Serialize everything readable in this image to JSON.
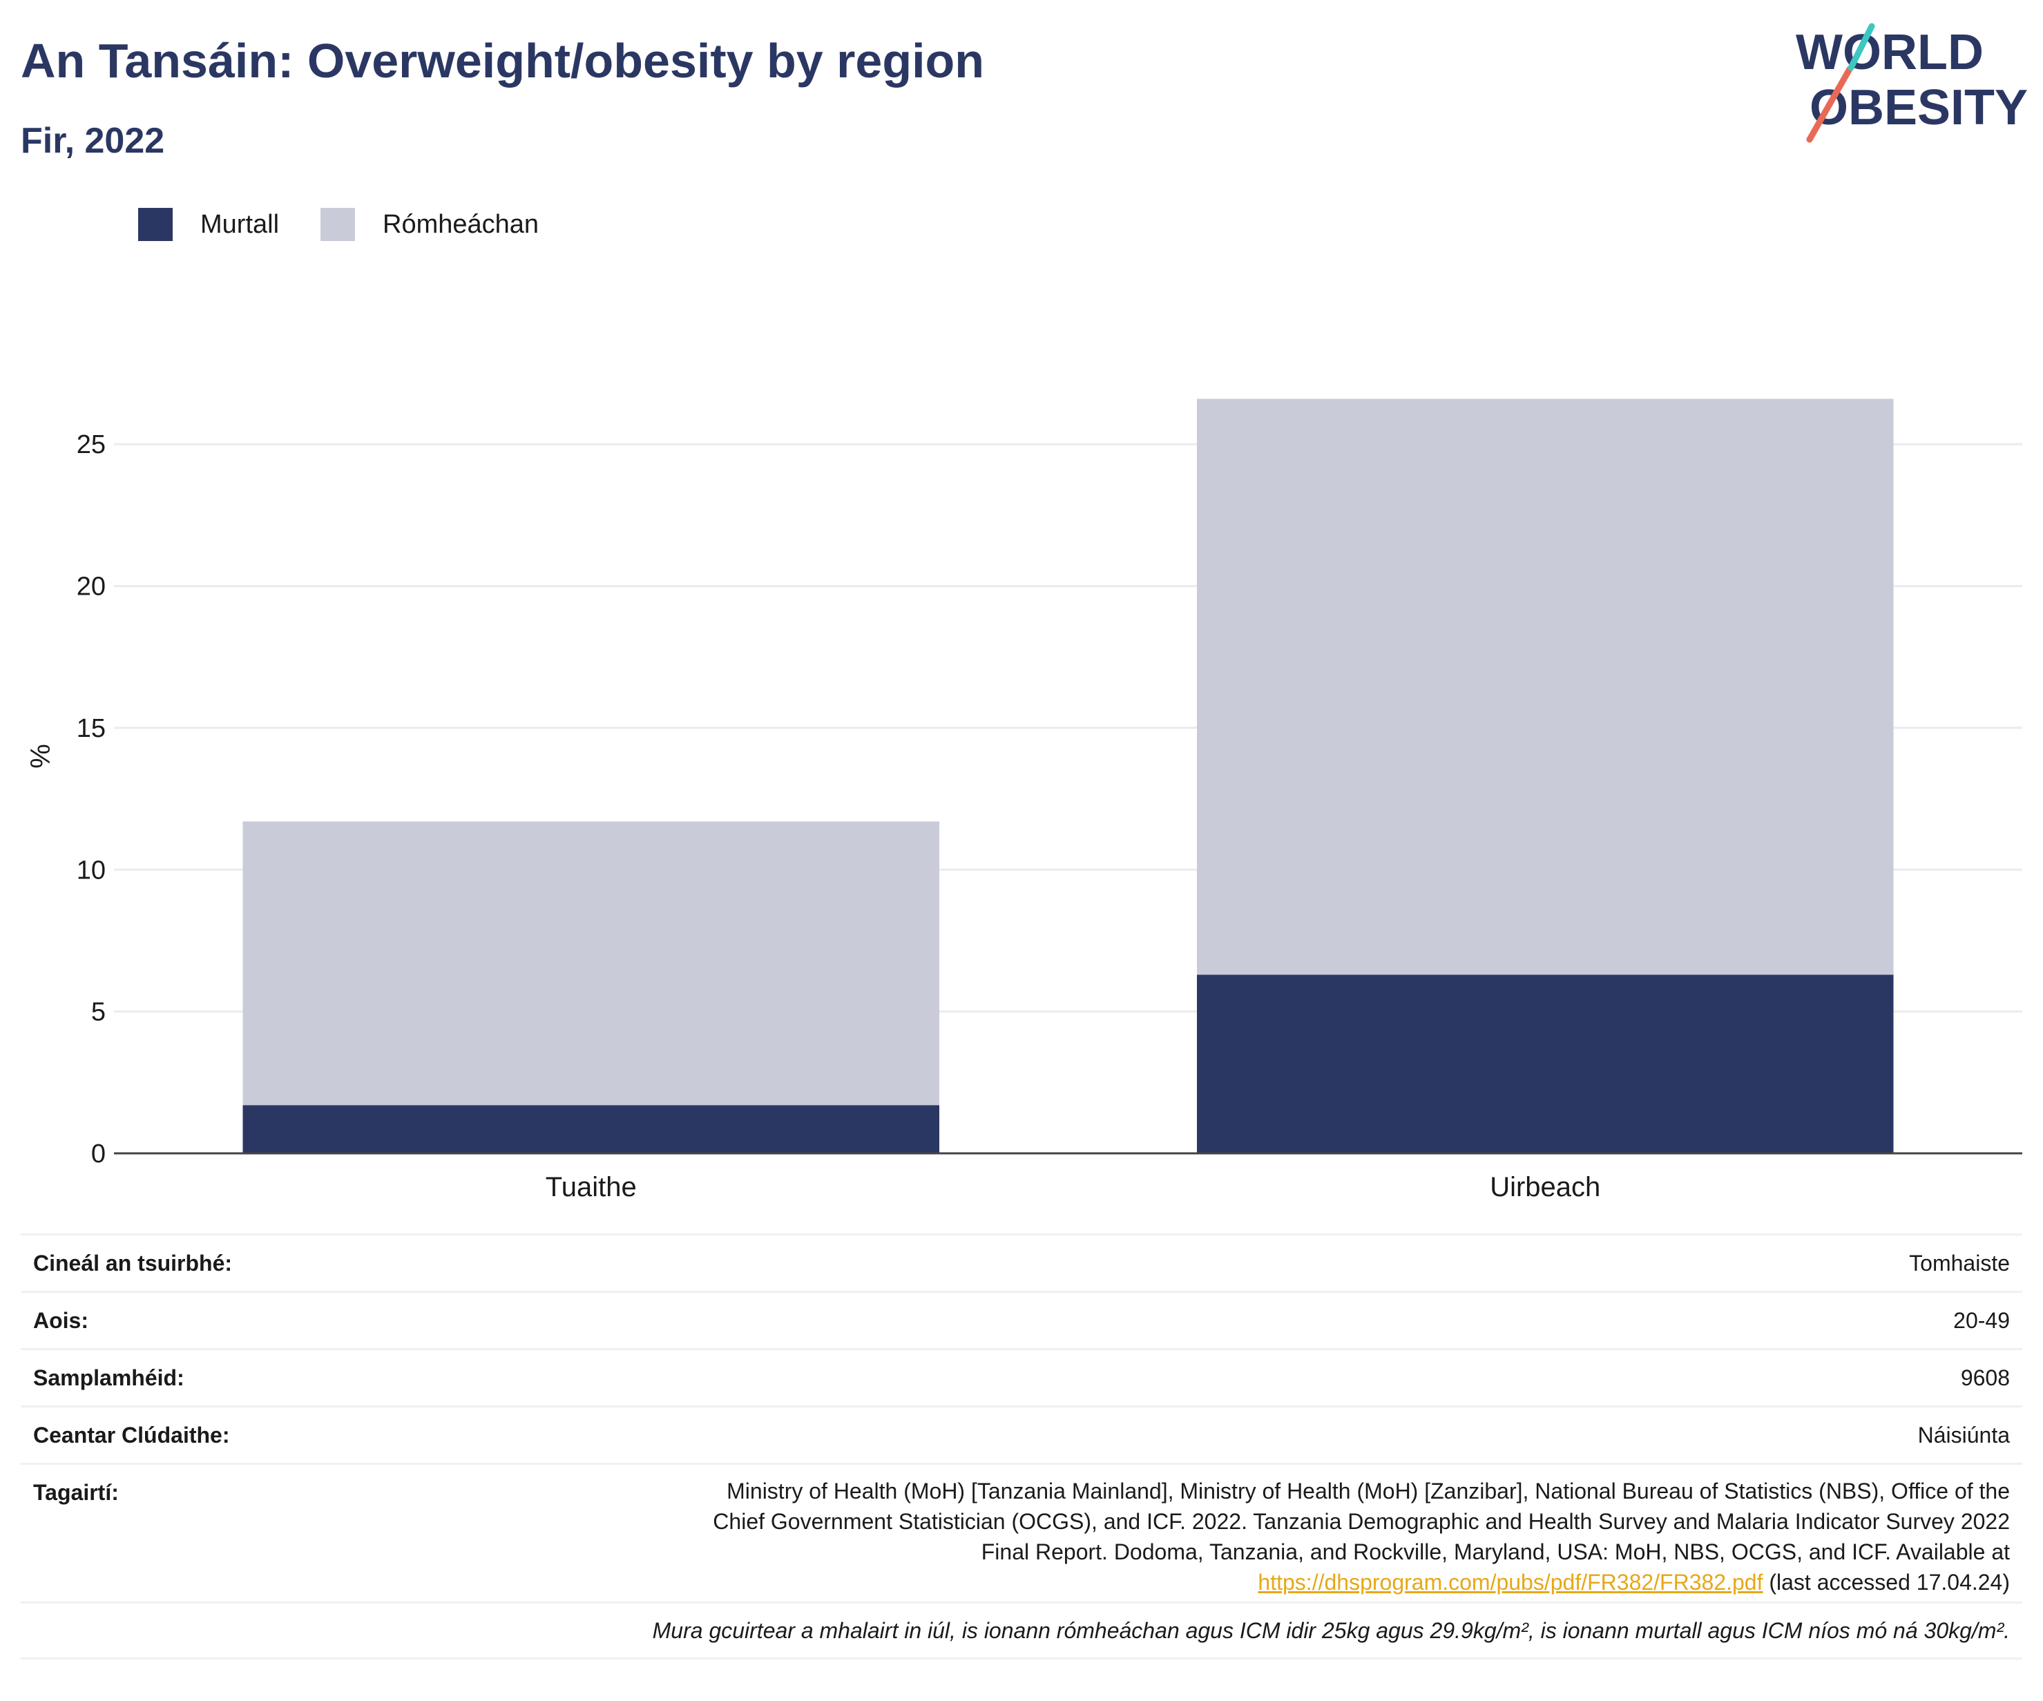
{
  "title": "An Tansáin: Overweight/obesity by region",
  "subtitle": "Fir, 2022",
  "logo": {
    "line1": "WORLD",
    "line2": "OBESITY"
  },
  "legend": [
    {
      "label": "Murtall",
      "color": "#2b3763"
    },
    {
      "label": "Rómheáchan",
      "color": "#c9ccd8"
    }
  ],
  "chart_data": {
    "type": "bar",
    "stacked": true,
    "categories": [
      "Tuaithe",
      "Uirbeach"
    ],
    "series": [
      {
        "name": "Murtall",
        "values": [
          1.7,
          6.3
        ],
        "color": "#2b3763"
      },
      {
        "name": "Rómheáchan",
        "values": [
          10.0,
          20.3
        ],
        "color": "#c9ccd8"
      }
    ],
    "ylabel": "%",
    "ylim": [
      0,
      28
    ],
    "yticks": [
      0,
      5,
      10,
      15,
      20,
      25
    ],
    "grid": true,
    "legend_position": "top-left"
  },
  "info": {
    "survey_type": {
      "label": "Cineál an tsuirbhé:",
      "value": "Tomhaiste"
    },
    "age": {
      "label": "Aois:",
      "value": "20-49"
    },
    "sample": {
      "label": "Samplamhéid:",
      "value": "9608"
    },
    "coverage": {
      "label": "Ceantar Clúdaithe:",
      "value": "Náisiúnta"
    },
    "refs": {
      "label": "Tagairtí:",
      "line1": "Ministry of Health (MoH) [Tanzania Mainland], Ministry of Health (MoH) [Zanzibar], National Bureau of Statistics (NBS), Office of the",
      "line2": "Chief Government Statistician (OCGS), and ICF. 2022. Tanzania Demographic and Health Survey and Malaria Indicator Survey 2022",
      "line3": "Final Report. Dodoma, Tanzania, and Rockville, Maryland, USA: MoH, NBS, OCGS, and ICF. Available at",
      "link": "https://dhsprogram.com/pubs/pdf/FR382/FR382.pdf",
      "suffix": " (last accessed 17.04.24)"
    },
    "note": "Mura gcuirtear a mhalairt in iúl, is ionann rómheáchan agus ICM idir 25kg agus 29.9kg/m², is ionann murtall agus ICM níos mó ná 30kg/m²."
  }
}
